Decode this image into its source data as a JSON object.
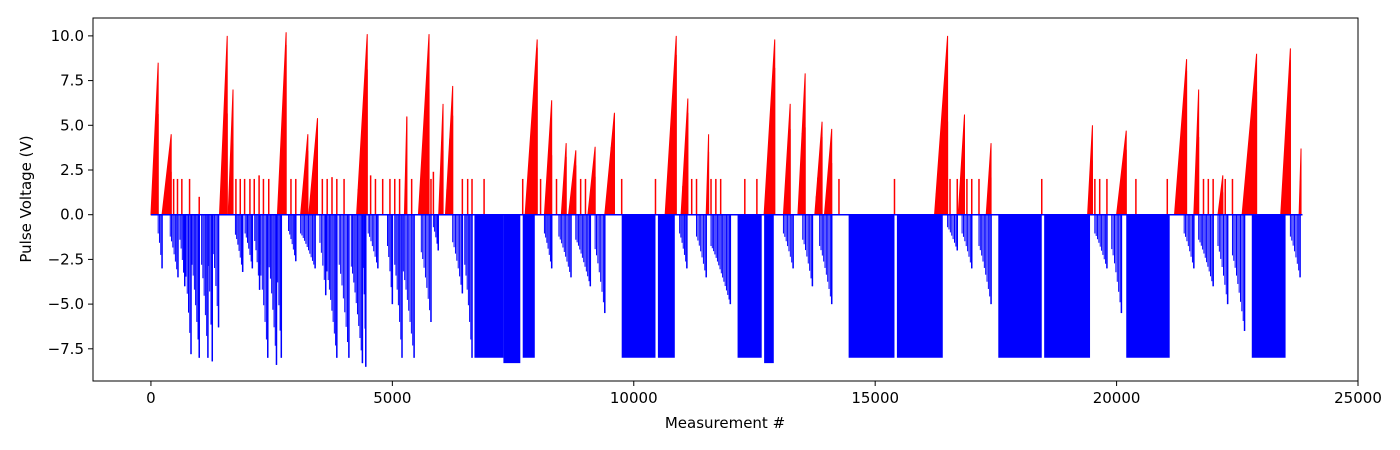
{
  "chart_data": {
    "type": "bar",
    "xlabel": "Measurement #",
    "ylabel": "Pulse Voltage (V)",
    "xlim": [
      -1200,
      25000
    ],
    "ylim": [
      -9.3,
      11.0
    ],
    "x_ticks": [
      0,
      5000,
      10000,
      15000,
      20000,
      25000
    ],
    "x_tick_labels": [
      "0",
      "5000",
      "10000",
      "15000",
      "20000",
      "25000"
    ],
    "y_ticks": [
      -7.5,
      -5.0,
      -2.5,
      0.0,
      2.5,
      5.0,
      7.5,
      10.0
    ],
    "y_tick_labels": [
      "−7.5",
      "−5.0",
      "−2.5",
      "0.0",
      "2.5",
      "5.0",
      "7.5",
      "10.0"
    ],
    "grid": false,
    "series": [
      {
        "color": "#ff0000",
        "description": "positive pulses",
        "ramps": [
          [
            0,
            150,
            8.5
          ],
          [
            230,
            420,
            4.5
          ],
          [
            1420,
            1580,
            10.0
          ],
          [
            1600,
            1700,
            7.0
          ],
          [
            2620,
            2800,
            10.2
          ],
          [
            3100,
            3250,
            4.5
          ],
          [
            3270,
            3450,
            5.4
          ],
          [
            4260,
            4480,
            10.1
          ],
          [
            5250,
            5300,
            5.5
          ],
          [
            5540,
            5760,
            10.1
          ],
          [
            5960,
            6050,
            6.2
          ],
          [
            6100,
            6250,
            7.2
          ],
          [
            7750,
            8000,
            9.8
          ],
          [
            8150,
            8300,
            6.4
          ],
          [
            8500,
            8600,
            4.0
          ],
          [
            8650,
            8800,
            3.6
          ],
          [
            9050,
            9200,
            3.8
          ],
          [
            9400,
            9600,
            5.7
          ],
          [
            10650,
            10880,
            10.0
          ],
          [
            10980,
            11120,
            6.5
          ],
          [
            11500,
            11550,
            4.5
          ],
          [
            12700,
            12920,
            9.8
          ],
          [
            13100,
            13240,
            6.2
          ],
          [
            13400,
            13550,
            7.9
          ],
          [
            13750,
            13900,
            5.2
          ],
          [
            13950,
            14100,
            4.8
          ],
          [
            16230,
            16500,
            10.0
          ],
          [
            16720,
            16850,
            5.6
          ],
          [
            17300,
            17400,
            4.0
          ],
          [
            19400,
            19500,
            5.0
          ],
          [
            20000,
            20200,
            4.7
          ],
          [
            21200,
            21450,
            8.7
          ],
          [
            21600,
            21700,
            7.0
          ],
          [
            22100,
            22200,
            2.2
          ],
          [
            22600,
            22900,
            9.0
          ],
          [
            23400,
            23600,
            9.3
          ],
          [
            23780,
            23820,
            3.7
          ]
        ],
        "spikes": [
          [
            470,
            2.0
          ],
          [
            550,
            2.0
          ],
          [
            640,
            2.0
          ],
          [
            800,
            2.0
          ],
          [
            1000,
            1.0
          ],
          [
            1680,
            2.0
          ],
          [
            1760,
            2.0
          ],
          [
            1850,
            2.0
          ],
          [
            1940,
            2.0
          ],
          [
            2050,
            2.0
          ],
          [
            2140,
            2.0
          ],
          [
            2240,
            2.2
          ],
          [
            2330,
            2.0
          ],
          [
            2440,
            2.0
          ],
          [
            2900,
            2.0
          ],
          [
            3000,
            2.0
          ],
          [
            3550,
            2.0
          ],
          [
            3650,
            2.0
          ],
          [
            3750,
            2.1
          ],
          [
            3850,
            2.0
          ],
          [
            4000,
            2.0
          ],
          [
            4550,
            2.2
          ],
          [
            4650,
            2.0
          ],
          [
            4800,
            2.0
          ],
          [
            4950,
            2.0
          ],
          [
            5050,
            2.0
          ],
          [
            5150,
            2.0
          ],
          [
            5400,
            2.0
          ],
          [
            5800,
            2.0
          ],
          [
            5850,
            2.4
          ],
          [
            6450,
            2.0
          ],
          [
            6560,
            2.0
          ],
          [
            6650,
            2.0
          ],
          [
            6900,
            2.0
          ],
          [
            7700,
            2.0
          ],
          [
            8070,
            2.0
          ],
          [
            8250,
            2.0
          ],
          [
            8400,
            2.0
          ],
          [
            8900,
            2.0
          ],
          [
            9000,
            2.0
          ],
          [
            9750,
            2.0
          ],
          [
            10450,
            2.0
          ],
          [
            11200,
            2.0
          ],
          [
            11300,
            2.0
          ],
          [
            11600,
            2.0
          ],
          [
            11700,
            2.0
          ],
          [
            11800,
            2.0
          ],
          [
            12300,
            2.0
          ],
          [
            12550,
            2.0
          ],
          [
            12800,
            2.0
          ],
          [
            14050,
            2.0
          ],
          [
            14250,
            2.0
          ],
          [
            15400,
            2.0
          ],
          [
            16550,
            2.0
          ],
          [
            16700,
            2.0
          ],
          [
            16900,
            2.0
          ],
          [
            17000,
            2.0
          ],
          [
            17150,
            2.0
          ],
          [
            18450,
            2.0
          ],
          [
            19550,
            2.0
          ],
          [
            19650,
            2.0
          ],
          [
            19800,
            2.0
          ],
          [
            20400,
            2.0
          ],
          [
            21050,
            2.0
          ],
          [
            21300,
            2.0
          ],
          [
            21800,
            2.0
          ],
          [
            21900,
            2.0
          ],
          [
            22000,
            2.0
          ],
          [
            22250,
            2.0
          ],
          [
            22400,
            2.0
          ]
        ]
      },
      {
        "color": "#0000ff",
        "description": "negative pulses",
        "blocks": [
          [
            6700,
            7300,
            -8.0
          ],
          [
            7300,
            7650,
            -8.3
          ],
          [
            7700,
            7950,
            -8.0
          ],
          [
            9750,
            10450,
            -8.0
          ],
          [
            10500,
            10850,
            -8.0
          ],
          [
            12150,
            12650,
            -8.0
          ],
          [
            12700,
            12900,
            -8.3
          ],
          [
            14450,
            15400,
            -8.0
          ],
          [
            15450,
            16400,
            -8.0
          ],
          [
            17550,
            18450,
            -8.0
          ],
          [
            18500,
            19450,
            -8.0
          ],
          [
            20200,
            21100,
            -8.0
          ],
          [
            22800,
            23500,
            -8.0
          ]
        ],
        "ramps": [
          [
            150,
            230,
            -3.0
          ],
          [
            400,
            560,
            -3.5
          ],
          [
            600,
            700,
            -4.0
          ],
          [
            700,
            830,
            -7.8
          ],
          [
            850,
            1000,
            -8.0
          ],
          [
            1050,
            1180,
            -8.0
          ],
          [
            1190,
            1270,
            -8.2
          ],
          [
            1290,
            1400,
            -6.3
          ],
          [
            1750,
            1900,
            -3.2
          ],
          [
            1950,
            2100,
            -3.0
          ],
          [
            2150,
            2250,
            -4.2
          ],
          [
            2250,
            2420,
            -8.0
          ],
          [
            2450,
            2600,
            -8.4
          ],
          [
            2600,
            2700,
            -8.0
          ],
          [
            2850,
            3000,
            -2.6
          ],
          [
            3100,
            3400,
            -3.0
          ],
          [
            3500,
            3620,
            -4.5
          ],
          [
            3620,
            3850,
            -8.0
          ],
          [
            3900,
            4100,
            -8.0
          ],
          [
            4150,
            4380,
            -8.3
          ],
          [
            4400,
            4450,
            -8.5
          ],
          [
            4500,
            4700,
            -3.0
          ],
          [
            4900,
            5000,
            -5.0
          ],
          [
            5050,
            5200,
            -8.0
          ],
          [
            5200,
            5450,
            -8.0
          ],
          [
            5600,
            5800,
            -6.0
          ],
          [
            5850,
            5950,
            -2.0
          ],
          [
            6250,
            6450,
            -4.4
          ],
          [
            6500,
            6650,
            -8.0
          ],
          [
            8150,
            8300,
            -3.0
          ],
          [
            8450,
            8700,
            -3.5
          ],
          [
            8800,
            9100,
            -4.0
          ],
          [
            9200,
            9400,
            -5.5
          ],
          [
            10950,
            11100,
            -3.0
          ],
          [
            11300,
            11500,
            -3.5
          ],
          [
            11600,
            12000,
            -5.0
          ],
          [
            13100,
            13300,
            -3.0
          ],
          [
            13500,
            13700,
            -4.0
          ],
          [
            13850,
            14100,
            -5.0
          ],
          [
            16500,
            16700,
            -2.0
          ],
          [
            16800,
            17000,
            -3.0
          ],
          [
            17150,
            17400,
            -5.0
          ],
          [
            19550,
            19800,
            -3.0
          ],
          [
            19900,
            20100,
            -5.5
          ],
          [
            21400,
            21600,
            -3.0
          ],
          [
            21700,
            22000,
            -4.0
          ],
          [
            22100,
            22300,
            -5.0
          ],
          [
            22400,
            22650,
            -6.5
          ],
          [
            23600,
            23800,
            -3.5
          ]
        ]
      }
    ]
  }
}
